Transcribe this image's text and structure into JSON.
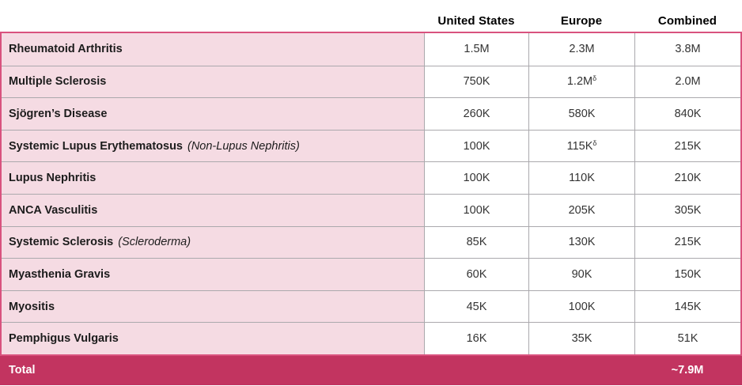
{
  "colors": {
    "outer_border": "#d9527e",
    "label_cell_bg": "#f5dbe3",
    "value_cell_bg": "#ffffff",
    "divider_gray": "#aba9ad",
    "total_row_bg": "#c23460",
    "total_text": "#ffffff",
    "header_text": "#000000",
    "label_text": "#1c1c1c",
    "value_text": "#333333"
  },
  "table": {
    "columns": [
      "United States",
      "Europe",
      "Combined"
    ],
    "rows": [
      {
        "label": "Rheumatoid Arthritis",
        "note": "",
        "us": "1.5M",
        "europe": "2.3M",
        "europe_sup": "",
        "combined": "3.8M"
      },
      {
        "label": "Multiple Sclerosis",
        "note": "",
        "us": "750K",
        "europe": "1.2M",
        "europe_sup": "δ",
        "combined": "2.0M"
      },
      {
        "label": "Sjögren’s Disease",
        "note": "",
        "us": "260K",
        "europe": "580K",
        "europe_sup": "",
        "combined": "840K"
      },
      {
        "label": "Systemic Lupus Erythematosus",
        "note": "(Non-Lupus Nephritis)",
        "us": "100K",
        "europe": "115K",
        "europe_sup": "δ",
        "combined": "215K"
      },
      {
        "label": "Lupus Nephritis",
        "note": "",
        "us": "100K",
        "europe": "110K",
        "europe_sup": "",
        "combined": "210K"
      },
      {
        "label": "ANCA Vasculitis",
        "note": "",
        "us": "100K",
        "europe": "205K",
        "europe_sup": "",
        "combined": "305K"
      },
      {
        "label": "Systemic Sclerosis",
        "note": "(Scleroderma)",
        "us": "85K",
        "europe": "130K",
        "europe_sup": "",
        "combined": "215K"
      },
      {
        "label": "Myasthenia Gravis",
        "note": "",
        "us": "60K",
        "europe": "90K",
        "europe_sup": "",
        "combined": "150K"
      },
      {
        "label": "Myositis",
        "note": "",
        "us": "45K",
        "europe": "100K",
        "europe_sup": "",
        "combined": "145K"
      },
      {
        "label": "Pemphigus Vulgaris",
        "note": "",
        "us": "16K",
        "europe": "35K",
        "europe_sup": "",
        "combined": "51K"
      }
    ],
    "total": {
      "label": "Total",
      "combined": "~7.9M"
    }
  }
}
